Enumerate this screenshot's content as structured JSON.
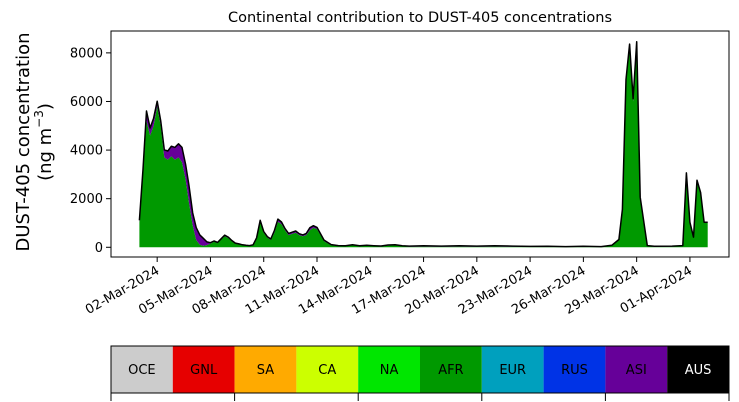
{
  "chart_data": {
    "type": "area",
    "title": "Continental contribution to DUST-405 concentrations",
    "ylabel_line1": "DUST-405 concentration",
    "ylabel_line2": "(ng m",
    "ylabel_unit_sup": "−3",
    "ylabel_line2_end": ")",
    "xlabel": "",
    "ylim": [
      -400,
      8900
    ],
    "xlim_days": [
      -1.6,
      33.2
    ],
    "x_start_date": "2024-03-01",
    "yticks": [
      0,
      2000,
      4000,
      6000,
      8000
    ],
    "ytick_labels": [
      "0",
      "2000",
      "4000",
      "6000",
      "8000"
    ],
    "xtick_days": [
      1,
      4,
      7,
      10,
      13,
      16,
      19,
      22,
      25,
      28,
      31
    ],
    "xtick_labels": [
      "02-Mar-2024",
      "05-Mar-2024",
      "08-Mar-2024",
      "11-Mar-2024",
      "14-Mar-2024",
      "17-Mar-2024",
      "20-Mar-2024",
      "23-Mar-2024",
      "26-Mar-2024",
      "29-Mar-2024",
      "01-Apr-2024"
    ],
    "grid": false,
    "legend_position": "bottom colorbar",
    "series": [
      {
        "name": "AFR",
        "color": "#009900",
        "x": [
          0,
          0.2,
          0.4,
          0.6,
          0.8,
          1.0,
          1.2,
          1.4,
          1.6,
          1.8,
          2.0,
          2.2,
          2.4,
          2.6,
          2.8,
          3.0,
          3.2,
          3.4,
          3.6,
          3.8,
          4.0,
          4.2,
          4.4,
          4.6,
          4.8,
          5.0,
          5.2,
          5.4,
          5.6,
          5.8,
          6.0,
          6.2,
          6.4,
          6.6,
          6.8,
          7.0,
          7.2,
          7.4,
          7.6,
          7.8,
          8.0,
          8.2,
          8.4,
          8.6,
          8.8,
          9.0,
          9.2,
          9.4,
          9.6,
          9.8,
          10.0,
          10.4,
          10.8,
          11.2,
          11.6,
          12.0,
          12.4,
          12.8,
          13.2,
          13.6,
          14.0,
          14.4,
          14.8,
          15.2,
          16.0,
          17.0,
          18.0,
          19.0,
          20.0,
          21.0,
          22.0,
          23.0,
          24.0,
          25.0,
          26.0,
          26.6,
          27.0,
          27.2,
          27.4,
          27.6,
          27.8,
          28.0,
          28.2,
          28.6,
          29.0,
          30.0,
          30.6,
          30.8,
          31.0,
          31.2,
          31.4,
          31.6,
          31.8,
          32.0
        ],
        "values": [
          1000,
          3000,
          5200,
          4600,
          5000,
          5800,
          5000,
          3700,
          3600,
          3750,
          3600,
          3700,
          3500,
          2800,
          1800,
          900,
          300,
          100,
          60,
          90,
          150,
          230,
          180,
          320,
          450,
          380,
          250,
          150,
          120,
          80,
          60,
          50,
          80,
          350,
          1050,
          600,
          400,
          300,
          600,
          1050,
          950,
          700,
          500,
          550,
          600,
          500,
          450,
          500,
          700,
          800,
          750,
          250,
          80,
          50,
          40,
          80,
          40,
          60,
          40,
          30,
          70,
          80,
          40,
          20,
          30,
          20,
          30,
          20,
          30,
          20,
          10,
          20,
          10,
          20,
          10,
          60,
          300,
          1500,
          6800,
          8200,
          6000,
          8300,
          2000,
          50,
          20,
          30,
          50,
          3000,
          1000,
          400,
          2700,
          2200,
          1000,
          1000
        ]
      },
      {
        "name": "ASI",
        "color": "#660099",
        "x": [
          0,
          0.2,
          0.4,
          0.6,
          0.8,
          1.0,
          1.2,
          1.4,
          1.6,
          1.8,
          2.0,
          2.2,
          2.4,
          2.6,
          2.8,
          3.0,
          3.2,
          3.4,
          3.6,
          3.8,
          4.0,
          4.2,
          4.4,
          4.6,
          4.8,
          5.0,
          5.2,
          5.4,
          5.6,
          5.8,
          6.0,
          6.2,
          6.4,
          6.6,
          6.8,
          7.0,
          7.2,
          7.4,
          7.6,
          7.8,
          8.0,
          8.2,
          8.4,
          8.6,
          8.8,
          9.0,
          9.2,
          9.4,
          9.6,
          9.8,
          10.0,
          10.4,
          10.8,
          11.2,
          11.6,
          12.0,
          12.4,
          12.8,
          13.2,
          13.6,
          14.0,
          14.4,
          14.8,
          15.2,
          16.0,
          17.0,
          18.0,
          19.0,
          20.0,
          21.0,
          22.0,
          23.0,
          24.0,
          25.0,
          26.0,
          26.6,
          27.0,
          27.2,
          27.4,
          27.6,
          27.8,
          28.0,
          28.2,
          28.6,
          29.0,
          30.0,
          30.6,
          30.8,
          31.0,
          31.2,
          31.4,
          31.6,
          31.8,
          32.0
        ],
        "values": [
          100,
          200,
          400,
          300,
          300,
          200,
          200,
          300,
          350,
          400,
          500,
          550,
          600,
          600,
          700,
          500,
          500,
          400,
          300,
          120,
          30,
          20,
          10,
          20,
          40,
          30,
          20,
          10,
          10,
          10,
          10,
          10,
          10,
          30,
          50,
          40,
          30,
          30,
          80,
          100,
          80,
          60,
          60,
          60,
          60,
          50,
          50,
          60,
          100,
          80,
          60,
          30,
          20,
          10,
          10,
          10,
          10,
          10,
          10,
          10,
          10,
          10,
          10,
          10,
          10,
          10,
          10,
          10,
          10,
          10,
          10,
          10,
          10,
          10,
          10,
          10,
          10,
          50,
          100,
          150,
          100,
          150,
          50,
          10,
          10,
          10,
          10,
          50,
          20,
          10,
          50,
          50,
          20,
          20
        ]
      },
      {
        "name": "EUR",
        "color": "#00a0be",
        "x": [
          0,
          4.0,
          8.0,
          12.0,
          16.0,
          20.0,
          24.0,
          28.0,
          32.0
        ],
        "values": [
          5,
          5,
          5,
          5,
          10,
          10,
          5,
          5,
          5
        ]
      },
      {
        "name": "CA",
        "color": "#ccff00",
        "x": [
          0,
          4.0,
          8.0,
          12.0,
          16.0,
          20.0,
          24.0,
          28.0,
          32.0
        ],
        "values": [
          5,
          5,
          5,
          5,
          10,
          10,
          5,
          5,
          5
        ]
      }
    ],
    "legend": [
      {
        "name": "OCE",
        "color": "#cccccc",
        "text_color": "#000000"
      },
      {
        "name": "GNL",
        "color": "#e60000",
        "text_color": "#000000"
      },
      {
        "name": "SA",
        "color": "#ffaa00",
        "text_color": "#000000"
      },
      {
        "name": "CA",
        "color": "#ccff00",
        "text_color": "#000000"
      },
      {
        "name": "NA",
        "color": "#00e600",
        "text_color": "#000000"
      },
      {
        "name": "AFR",
        "color": "#009900",
        "text_color": "#000000"
      },
      {
        "name": "EUR",
        "color": "#00a0be",
        "text_color": "#000000"
      },
      {
        "name": "RUS",
        "color": "#0033e6",
        "text_color": "#000000"
      },
      {
        "name": "ASI",
        "color": "#660099",
        "text_color": "#000000"
      },
      {
        "name": "AUS",
        "color": "#000000",
        "text_color": "#ffffff"
      }
    ]
  }
}
